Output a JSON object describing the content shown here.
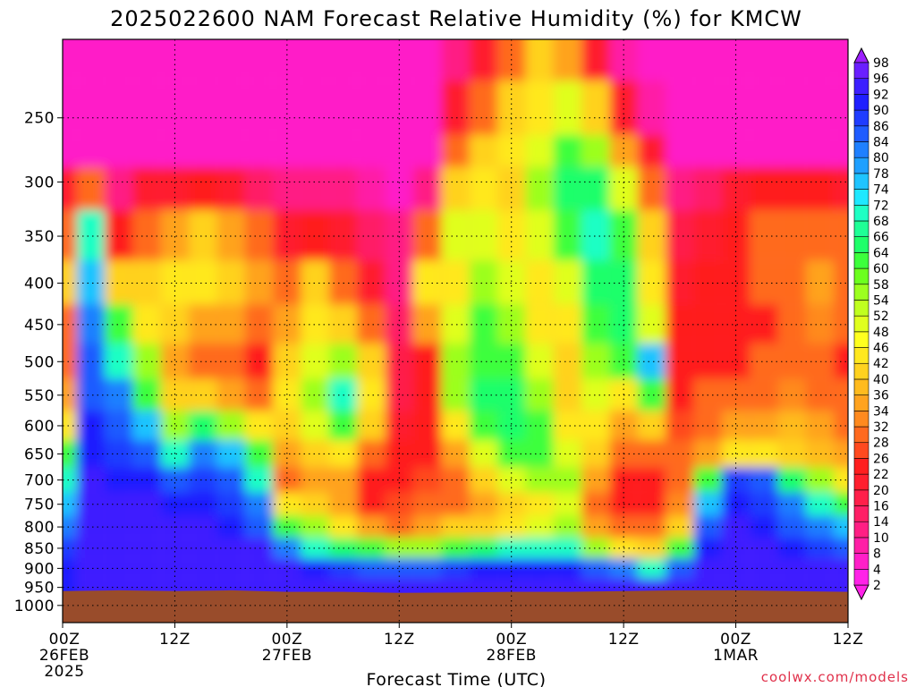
{
  "chart_data": {
    "type": "heatmap",
    "title": "2025022600 NAM Forecast Relative Humidity (%) for KMCW",
    "xlabel": "Forecast Time (UTC)",
    "ylabel": "",
    "x_unit": "forecast hour",
    "xlim": [
      0,
      84
    ],
    "y_scale": "log-pressure",
    "ylim_hpa": [
      1050,
      200
    ],
    "y_ticks": [
      250,
      300,
      350,
      400,
      450,
      500,
      550,
      600,
      650,
      700,
      750,
      800,
      850,
      900,
      950,
      1000
    ],
    "x_ticks": [
      {
        "hour": 0,
        "lines": [
          "00Z",
          "26FEB",
          "2025"
        ]
      },
      {
        "hour": 12,
        "lines": [
          "12Z"
        ]
      },
      {
        "hour": 24,
        "lines": [
          "00Z",
          "27FEB"
        ]
      },
      {
        "hour": 36,
        "lines": [
          "12Z"
        ]
      },
      {
        "hour": 48,
        "lines": [
          "00Z",
          "28FEB"
        ]
      },
      {
        "hour": 60,
        "lines": [
          "12Z"
        ]
      },
      {
        "hour": 72,
        "lines": [
          "00Z",
          "1MAR"
        ]
      },
      {
        "hour": 84,
        "lines": [
          "12Z"
        ]
      }
    ],
    "colorbar_levels": [
      2,
      4,
      8,
      10,
      14,
      16,
      20,
      22,
      26,
      28,
      32,
      34,
      36,
      40,
      42,
      46,
      48,
      52,
      54,
      58,
      60,
      64,
      66,
      68,
      72,
      74,
      78,
      80,
      84,
      86,
      90,
      92,
      96,
      98
    ],
    "colorbar_colors": [
      "#ff22e8",
      "#ff1fc8",
      "#ff1fa6",
      "#ff1f84",
      "#ff1f66",
      "#ff1f4a",
      "#ff1f2e",
      "#ff1f1f",
      "#ff4a1f",
      "#ff6a1f",
      "#ff8a1f",
      "#ffa31f",
      "#ffbb1f",
      "#ffd21f",
      "#ffe81f",
      "#ffff1f",
      "#e0ff1f",
      "#c0ff1f",
      "#9cff1f",
      "#6cff1f",
      "#3cff3c",
      "#1fff6a",
      "#1fff96",
      "#1fffc4",
      "#1fe8ff",
      "#1fc4ff",
      "#1fa0ff",
      "#1f80ff",
      "#1f5cff",
      "#1f3cff",
      "#1f1fff",
      "#3c1fff",
      "#6a1fff",
      "#9c1fff"
    ],
    "ground_color": "#994c2b",
    "grid": true,
    "rh_columns": [
      {
        "hour": 0,
        "rh": [
          5,
          5,
          5,
          20,
          30,
          40,
          30,
          30,
          35,
          45,
          60,
          70,
          75,
          80,
          88,
          90,
          90
        ]
      },
      {
        "hour": 3,
        "rh": [
          5,
          5,
          5,
          30,
          70,
          75,
          80,
          85,
          85,
          90,
          90,
          92,
          92,
          92,
          94,
          94,
          94
        ]
      },
      {
        "hour": 6,
        "rh": [
          5,
          5,
          5,
          10,
          25,
          40,
          60,
          70,
          80,
          85,
          88,
          90,
          92,
          92,
          94,
          94,
          94
        ]
      },
      {
        "hour": 9,
        "rh": [
          5,
          5,
          5,
          20,
          30,
          40,
          45,
          55,
          60,
          75,
          85,
          90,
          92,
          94,
          94,
          94,
          94
        ]
      },
      {
        "hour": 12,
        "rh": [
          5,
          5,
          5,
          20,
          35,
          45,
          40,
          35,
          40,
          55,
          70,
          85,
          90,
          92,
          94,
          94,
          94
        ]
      },
      {
        "hour": 15,
        "rh": [
          5,
          5,
          5,
          25,
          40,
          45,
          35,
          30,
          40,
          65,
          80,
          88,
          90,
          92,
          94,
          94,
          94
        ]
      },
      {
        "hour": 18,
        "rh": [
          5,
          5,
          5,
          20,
          35,
          40,
          35,
          30,
          35,
          55,
          75,
          85,
          88,
          90,
          94,
          94,
          94
        ]
      },
      {
        "hour": 21,
        "rh": [
          5,
          5,
          5,
          15,
          30,
          35,
          30,
          25,
          30,
          45,
          60,
          70,
          80,
          85,
          92,
          94,
          94
        ]
      },
      {
        "hour": 24,
        "rh": [
          5,
          5,
          5,
          10,
          20,
          30,
          35,
          40,
          45,
          40,
          35,
          30,
          45,
          60,
          80,
          92,
          94
        ]
      },
      {
        "hour": 27,
        "rh": [
          5,
          5,
          5,
          10,
          25,
          40,
          45,
          50,
          55,
          50,
          40,
          35,
          40,
          55,
          70,
          90,
          94
        ]
      },
      {
        "hour": 30,
        "rh": [
          5,
          5,
          5,
          10,
          20,
          30,
          40,
          55,
          70,
          60,
          45,
          35,
          35,
          45,
          65,
          88,
          94
        ]
      },
      {
        "hour": 33,
        "rh": [
          5,
          5,
          5,
          8,
          15,
          20,
          30,
          40,
          45,
          40,
          30,
          25,
          25,
          35,
          60,
          85,
          94
        ]
      },
      {
        "hour": 36,
        "rh": [
          5,
          5,
          5,
          6,
          10,
          12,
          14,
          16,
          18,
          20,
          22,
          24,
          26,
          30,
          55,
          85,
          94
        ]
      },
      {
        "hour": 39,
        "rh": [
          5,
          5,
          5,
          12,
          30,
          45,
          35,
          25,
          22,
          24,
          24,
          26,
          28,
          35,
          55,
          85,
          94
        ]
      },
      {
        "hour": 42,
        "rh": [
          10,
          20,
          30,
          40,
          50,
          45,
          50,
          55,
          55,
          45,
          35,
          28,
          30,
          40,
          60,
          88,
          94
        ]
      },
      {
        "hour": 45,
        "rh": [
          20,
          30,
          40,
          45,
          50,
          55,
          60,
          60,
          65,
          60,
          50,
          40,
          35,
          40,
          65,
          90,
          94
        ]
      },
      {
        "hour": 48,
        "rh": [
          30,
          40,
          45,
          40,
          45,
          50,
          55,
          60,
          65,
          65,
          60,
          50,
          40,
          45,
          70,
          90,
          94
        ]
      },
      {
        "hour": 51,
        "rh": [
          40,
          45,
          50,
          55,
          50,
          45,
          45,
          50,
          55,
          60,
          60,
          55,
          45,
          50,
          70,
          90,
          94
        ]
      },
      {
        "hour": 54,
        "rh": [
          35,
          50,
          60,
          65,
          60,
          50,
          45,
          40,
          40,
          45,
          50,
          55,
          50,
          55,
          70,
          90,
          94
        ]
      },
      {
        "hour": 57,
        "rh": [
          20,
          40,
          55,
          65,
          70,
          65,
          60,
          55,
          50,
          45,
          40,
          35,
          30,
          35,
          55,
          85,
          94
        ]
      },
      {
        "hour": 60,
        "rh": [
          8,
          20,
          35,
          50,
          60,
          65,
          65,
          60,
          45,
          35,
          30,
          25,
          25,
          30,
          45,
          80,
          94
        ]
      },
      {
        "hour": 63,
        "rh": [
          5,
          8,
          20,
          30,
          40,
          45,
          50,
          75,
          60,
          40,
          30,
          25,
          25,
          30,
          40,
          70,
          92
        ]
      },
      {
        "hour": 66,
        "rh": [
          5,
          5,
          5,
          10,
          18,
          20,
          22,
          24,
          25,
          26,
          28,
          30,
          32,
          40,
          60,
          85,
          94
        ]
      },
      {
        "hour": 69,
        "rh": [
          5,
          5,
          5,
          15,
          20,
          22,
          22,
          25,
          28,
          30,
          35,
          60,
          75,
          85,
          90,
          94,
          94
        ]
      },
      {
        "hour": 72,
        "rh": [
          5,
          5,
          5,
          20,
          25,
          25,
          22,
          25,
          30,
          35,
          45,
          88,
          90,
          92,
          94,
          94,
          94
        ]
      },
      {
        "hour": 75,
        "rh": [
          5,
          5,
          5,
          25,
          30,
          28,
          25,
          28,
          30,
          35,
          42,
          85,
          88,
          90,
          92,
          94,
          94
        ]
      },
      {
        "hour": 78,
        "rh": [
          5,
          5,
          5,
          22,
          28,
          30,
          30,
          30,
          32,
          36,
          40,
          65,
          80,
          85,
          90,
          92,
          94
        ]
      },
      {
        "hour": 81,
        "rh": [
          5,
          5,
          5,
          25,
          30,
          35,
          32,
          28,
          30,
          34,
          38,
          55,
          70,
          80,
          88,
          92,
          94
        ]
      },
      {
        "hour": 84,
        "rh": [
          5,
          5,
          5,
          20,
          28,
          30,
          28,
          25,
          28,
          30,
          35,
          45,
          60,
          75,
          85,
          92,
          94
        ]
      }
    ],
    "rh_levels_hpa": [
      200,
      250,
      275,
      300,
      350,
      400,
      450,
      500,
      550,
      600,
      650,
      700,
      750,
      800,
      850,
      900,
      950
    ],
    "ground_pressure_hpa": [
      960,
      958,
      960,
      958,
      962,
      962,
      965,
      964,
      962,
      962,
      960,
      958,
      958,
      960,
      962
    ]
  },
  "credit": "coolwx.com/models"
}
